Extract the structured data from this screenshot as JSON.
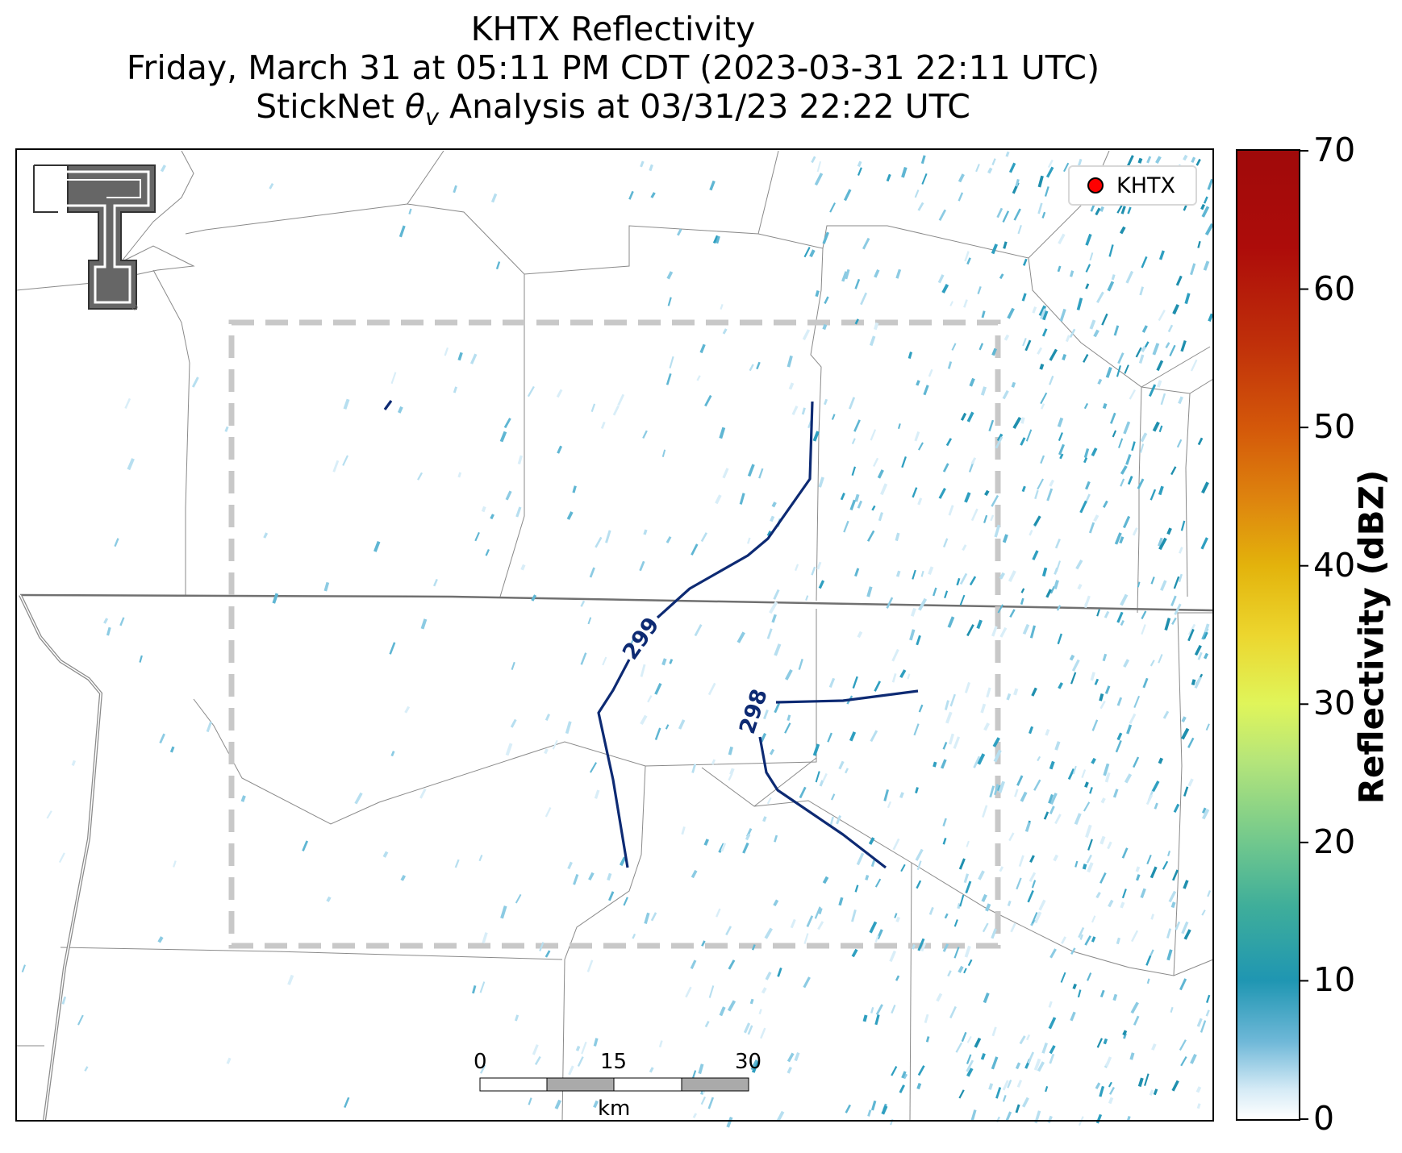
{
  "title": {
    "line1": "KHTX Reflectivity",
    "line2": "Friday, March 31 at 05:11 PM CDT (2023-03-31 22:11 UTC)",
    "line3": "StickNet θv Analysis at 03/31/23 22:22 UTC"
  },
  "legend": {
    "label": "KHTX",
    "marker_color": "#ff0000"
  },
  "colorbar": {
    "label": "Reflectivity (dBZ)",
    "ticks": [
      "0",
      "10",
      "20",
      "30",
      "40",
      "50",
      "60",
      "70"
    ],
    "range": [
      0,
      70
    ]
  },
  "contours": [
    {
      "label": "299",
      "color": "#0d2a73"
    },
    {
      "label": "298",
      "color": "#0d2a73"
    }
  ],
  "scale_bar": {
    "ticks": [
      "0",
      "15",
      "30"
    ],
    "unit": "km"
  },
  "colors": {
    "contour": "#0d2a73",
    "box": "#c8c8c8",
    "boundary": "#7a7a7a",
    "echo": "#2a9ab7"
  },
  "logo": {
    "name": "Texas Tech Double T"
  }
}
